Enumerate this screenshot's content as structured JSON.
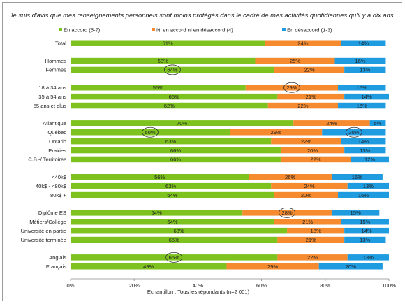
{
  "chart_data": {
    "type": "bar",
    "orientation": "horizontal",
    "stacked": true,
    "title": "Je suis d'avis que mes renseignements personnels sont moins protégés dans le cadre de mes activités quotidiennes qu'il y a dix ans.",
    "xlabel": "Échantillon : Tous les répondants (n=2 001)",
    "xlim": [
      0,
      100
    ],
    "x_ticks": [
      "0%",
      "20%",
      "40%",
      "60%",
      "80%",
      "100%"
    ],
    "legend_position": "top",
    "grid": false,
    "series": [
      {
        "name": "En accord (5-7)",
        "color": "#7dc21e"
      },
      {
        "name": "Ni en accord ni en désaccord (4)",
        "color": "#f58a2e"
      },
      {
        "name": "En désaccord (1-3)",
        "color": "#1f9be0"
      }
    ],
    "groups": [
      {
        "rows": [
          {
            "label": "Total",
            "values": [
              61,
              24,
              14
            ],
            "labels": [
              "61%",
              "24%",
              "14%"
            ],
            "circled": []
          }
        ]
      },
      {
        "rows": [
          {
            "label": "Hommes",
            "values": [
              58,
              25,
              16
            ],
            "labels": [
              "58%",
              "25%",
              "16%"
            ],
            "circled": []
          },
          {
            "label": "Femmes",
            "values": [
              64,
              22,
              13
            ],
            "labels": [
              "64%",
              "22%",
              "13%"
            ],
            "circled": [
              0
            ]
          }
        ]
      },
      {
        "rows": [
          {
            "label": "18 à 34 ans",
            "values": [
              55,
              29,
              15
            ],
            "labels": [
              "55%",
              "29%",
              "15%"
            ],
            "circled": [
              1
            ]
          },
          {
            "label": "35 à 54 ans",
            "values": [
              65,
              21,
              14
            ],
            "labels": [
              "65%",
              "21%",
              "14%"
            ],
            "circled": []
          },
          {
            "label": "55 ans et plus",
            "values": [
              62,
              22,
              15
            ],
            "labels": [
              "62%",
              "22%",
              "15%"
            ],
            "circled": []
          }
        ]
      },
      {
        "rows": [
          {
            "label": "Atlantique",
            "values": [
              70,
              24,
              5
            ],
            "labels": [
              "70%",
              "24%",
              "5%"
            ],
            "circled": []
          },
          {
            "label": "Québec",
            "values": [
              50,
              29,
              20
            ],
            "labels": [
              "50%",
              "29%",
              "20%"
            ],
            "circled": [
              0,
              2
            ]
          },
          {
            "label": "Ontario",
            "values": [
              63,
              22,
              14
            ],
            "labels": [
              "63%",
              "22%",
              "14%"
            ],
            "circled": []
          },
          {
            "label": "Prairies",
            "values": [
              66,
              20,
              13
            ],
            "labels": [
              "66%",
              "20%",
              "13%"
            ],
            "circled": []
          },
          {
            "label": "C.B.-/ Territoires",
            "values": [
              66,
              22,
              12
            ],
            "labels": [
              "66%",
              "22%",
              "12%"
            ],
            "circled": []
          }
        ]
      },
      {
        "rows": [
          {
            "label": "<40k$",
            "values": [
              56,
              26,
              16
            ],
            "labels": [
              "56%",
              "26%",
              "16%"
            ],
            "circled": []
          },
          {
            "label": "40k$ - <80k$",
            "values": [
              63,
              24,
              13
            ],
            "labels": [
              "63%",
              "24%",
              "13%"
            ],
            "circled": []
          },
          {
            "label": "80k$ +",
            "values": [
              64,
              20,
              16
            ],
            "labels": [
              "64%",
              "20%",
              "16%"
            ],
            "circled": []
          }
        ]
      },
      {
        "rows": [
          {
            "label": "Diplôme ÉS",
            "values": [
              54,
              28,
              15
            ],
            "labels": [
              "54%",
              "28%",
              "15%"
            ],
            "circled": [
              1
            ]
          },
          {
            "label": "Métiers/Collège",
            "values": [
              64,
              21,
              15
            ],
            "labels": [
              "64%",
              "21%",
              "15%"
            ],
            "circled": []
          },
          {
            "label": "Université en partie",
            "values": [
              68,
              18,
              14
            ],
            "labels": [
              "68%",
              "18%",
              "14%"
            ],
            "circled": []
          },
          {
            "label": "Université terminée",
            "values": [
              65,
              21,
              13
            ],
            "labels": [
              "65%",
              "21%",
              "13%"
            ],
            "circled": []
          }
        ]
      },
      {
        "rows": [
          {
            "label": "Anglais",
            "values": [
              65,
              22,
              13
            ],
            "labels": [
              "65%",
              "22%",
              "13%"
            ],
            "circled": [
              0
            ]
          },
          {
            "label": "Français",
            "values": [
              49,
              29,
              20
            ],
            "labels": [
              "49%",
              "29%",
              "20%"
            ],
            "circled": []
          }
        ]
      }
    ]
  }
}
